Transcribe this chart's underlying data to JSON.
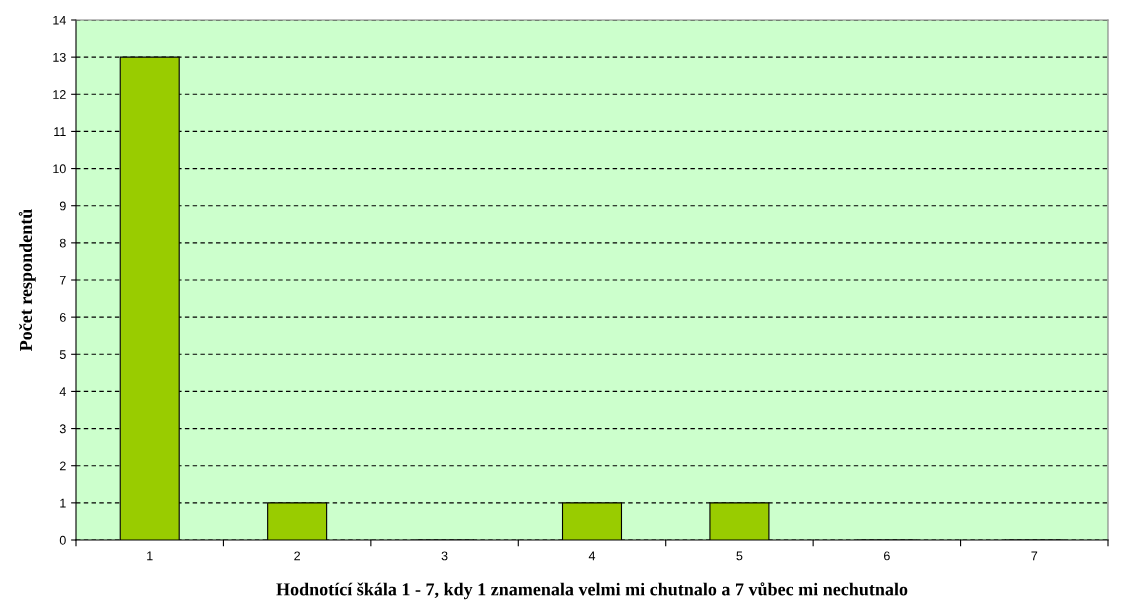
{
  "chart_data": {
    "type": "bar",
    "xlabel": "Hodnotící škála 1 - 7, kdy 1 znamenala velmi mi chutnalo a 7 vůbec mi nechutnalo",
    "ylabel": "Počet respondentů",
    "categories": [
      "1",
      "2",
      "3",
      "4",
      "5",
      "6",
      "7"
    ],
    "values": [
      13,
      1,
      0,
      1,
      1,
      0,
      0
    ],
    "color": "#99cc00",
    "ylim": [
      0,
      14
    ],
    "yticks": [
      0,
      1,
      2,
      3,
      4,
      5,
      6,
      7,
      8,
      9,
      10,
      11,
      12,
      13,
      14
    ],
    "grid": "y",
    "line_style": "dashed",
    "legend": false
  }
}
